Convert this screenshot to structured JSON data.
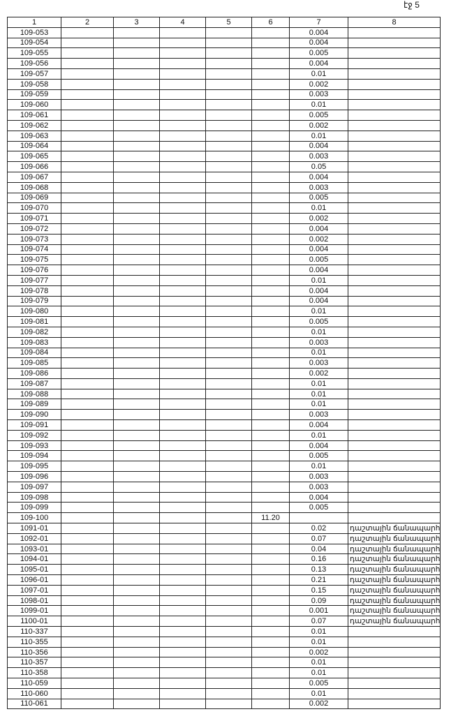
{
  "page_label": "էջ 5",
  "header": [
    "1",
    "2",
    "3",
    "4",
    "5",
    "6",
    "7",
    "8"
  ],
  "rows": [
    {
      "id": "109-053",
      "c7": "0.004"
    },
    {
      "id": "109-054",
      "c7": "0.004"
    },
    {
      "id": "109-055",
      "c7": "0.005"
    },
    {
      "id": "109-056",
      "c7": "0.004"
    },
    {
      "id": "109-057",
      "c7": "0.01"
    },
    {
      "id": "109-058",
      "c7": "0.002"
    },
    {
      "id": "109-059",
      "c7": "0.003"
    },
    {
      "id": "109-060",
      "c7": "0.01"
    },
    {
      "id": "109-061",
      "c7": "0.005"
    },
    {
      "id": "109-062",
      "c7": "0.002"
    },
    {
      "id": "109-063",
      "c7": "0.01"
    },
    {
      "id": "109-064",
      "c7": "0.004"
    },
    {
      "id": "109-065",
      "c7": "0.003"
    },
    {
      "id": "109-066",
      "c7": "0.05"
    },
    {
      "id": "109-067",
      "c7": "0.004"
    },
    {
      "id": "109-068",
      "c7": "0.003"
    },
    {
      "id": "109-069",
      "c7": "0.005"
    },
    {
      "id": "109-070",
      "c7": "0.01"
    },
    {
      "id": "109-071",
      "c7": "0.002"
    },
    {
      "id": "109-072",
      "c7": "0.004"
    },
    {
      "id": "109-073",
      "c7": "0.002"
    },
    {
      "id": "109-074",
      "c7": "0.004"
    },
    {
      "id": "109-075",
      "c7": "0.005"
    },
    {
      "id": "109-076",
      "c7": "0.004"
    },
    {
      "id": "109-077",
      "c7": "0.01"
    },
    {
      "id": "109-078",
      "c7": "0.004"
    },
    {
      "id": "109-079",
      "c7": "0.004"
    },
    {
      "id": "109-080",
      "c7": "0.01"
    },
    {
      "id": "109-081",
      "c7": "0.005"
    },
    {
      "id": "109-082",
      "c7": "0.01"
    },
    {
      "id": "109-083",
      "c7": "0.003"
    },
    {
      "id": "109-084",
      "c7": "0.01"
    },
    {
      "id": "109-085",
      "c7": "0.003"
    },
    {
      "id": "109-086",
      "c7": "0.002"
    },
    {
      "id": "109-087",
      "c7": "0.01"
    },
    {
      "id": "109-088",
      "c7": "0.01"
    },
    {
      "id": "109-089",
      "c7": "0.01"
    },
    {
      "id": "109-090",
      "c7": "0.003"
    },
    {
      "id": "109-091",
      "c7": "0.004"
    },
    {
      "id": "109-092",
      "c7": "0.01"
    },
    {
      "id": "109-093",
      "c7": "0.004"
    },
    {
      "id": "109-094",
      "c7": "0.005"
    },
    {
      "id": "109-095",
      "c7": "0.01"
    },
    {
      "id": "109-096",
      "c7": "0.003"
    },
    {
      "id": "109-097",
      "c7": "0.003"
    },
    {
      "id": "109-098",
      "c7": "0.004"
    },
    {
      "id": "109-099",
      "c7": "0.005"
    },
    {
      "id": "109-100",
      "c6": "11.20"
    },
    {
      "id": "1091-01",
      "c7": "0.02",
      "c8": "դաշտային ճանապարհ"
    },
    {
      "id": "1092-01",
      "c7": "0.07",
      "c8": "դաշտային ճանապարհ"
    },
    {
      "id": "1093-01",
      "c7": "0.04",
      "c8": "դաշտային ճանապարհ"
    },
    {
      "id": "1094-01",
      "c7": "0.16",
      "c8": "դաշտային ճանապարհ"
    },
    {
      "id": "1095-01",
      "c7": "0.13",
      "c8": "դաշտային ճանապարհ"
    },
    {
      "id": "1096-01",
      "c7": "0.21",
      "c8": "դաշտային ճանապարհ"
    },
    {
      "id": "1097-01",
      "c7": "0.15",
      "c8": "դաշտային ճանապարհ"
    },
    {
      "id": "1098-01",
      "c7": "0.09",
      "c8": "դաշտային ճանապարհ"
    },
    {
      "id": "1099-01",
      "c7": "0.001",
      "c8": "դաշտային ճանապարհ"
    },
    {
      "id": "1100-01",
      "c7": "0.07",
      "c8": "դաշտային ճանապարհ"
    },
    {
      "id": "110-337",
      "c7": "0.01"
    },
    {
      "id": "110-355",
      "c7": "0.01"
    },
    {
      "id": "110-356",
      "c7": "0.002"
    },
    {
      "id": "110-357",
      "c7": "0.01"
    },
    {
      "id": "110-358",
      "c7": "0.01"
    },
    {
      "id": "110-059",
      "c7": "0.005"
    },
    {
      "id": "110-060",
      "c7": "0.01"
    },
    {
      "id": "110-061",
      "c7": "0.002"
    }
  ]
}
